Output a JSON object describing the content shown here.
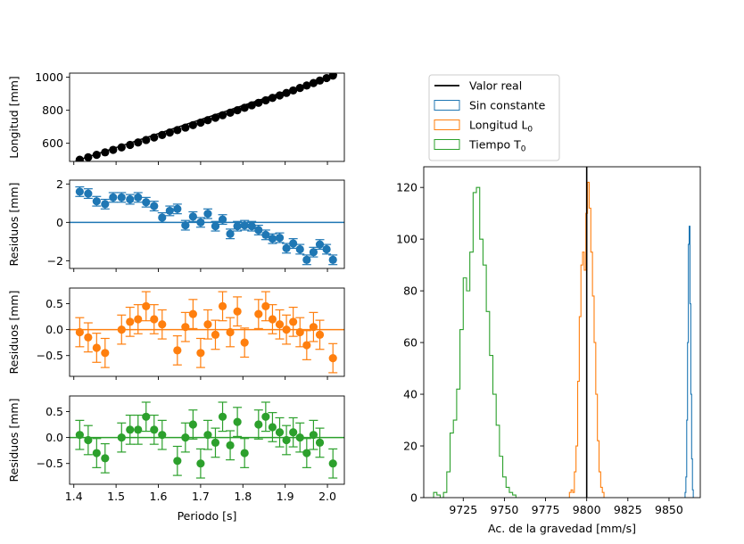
{
  "colors": {
    "blue": "#1f77b4",
    "orange": "#ff7f0e",
    "green": "#2ca02c",
    "black": "#000000"
  },
  "chart_data": [
    {
      "type": "scatter",
      "panel": "length",
      "color": "black",
      "ylabel": "Longitud [mm]",
      "xlim": [
        1.39,
        2.04
      ],
      "ylim": [
        490,
        1025
      ],
      "yticks": [
        600,
        800,
        1000
      ],
      "ytick_labels": [
        "600",
        "800",
        "1000"
      ],
      "has_fit_line": true,
      "x": [
        1.414,
        1.434,
        1.454,
        1.474,
        1.493,
        1.513,
        1.533,
        1.552,
        1.571,
        1.59,
        1.609,
        1.627,
        1.645,
        1.664,
        1.682,
        1.7,
        1.717,
        1.735,
        1.752,
        1.77,
        1.787,
        1.804,
        1.821,
        1.837,
        1.854,
        1.87,
        1.887,
        1.903,
        1.919,
        1.935,
        1.951,
        1.967,
        1.982,
        1.998,
        2.013
      ],
      "y": [
        500,
        515,
        530,
        545,
        560,
        575,
        590,
        605,
        620,
        635,
        650,
        665,
        680,
        695,
        710,
        725,
        740,
        755,
        770,
        785,
        800,
        815,
        830,
        845,
        860,
        875,
        890,
        905,
        920,
        935,
        950,
        965,
        980,
        995,
        1010
      ]
    },
    {
      "type": "scatter",
      "panel": "residuals_sin_constante",
      "color": "blue",
      "ylabel": "Residuos [mm]",
      "xlim": [
        1.39,
        2.04
      ],
      "ylim": [
        -2.4,
        2.2
      ],
      "yticks": [
        -2,
        0,
        2
      ],
      "ytick_labels": [
        "−2",
        "0",
        "2"
      ],
      "error": 0.25,
      "x": [
        1.414,
        1.434,
        1.454,
        1.474,
        1.493,
        1.513,
        1.533,
        1.552,
        1.571,
        1.59,
        1.609,
        1.627,
        1.645,
        1.664,
        1.682,
        1.7,
        1.717,
        1.735,
        1.752,
        1.77,
        1.787,
        1.804,
        1.821,
        1.837,
        1.854,
        1.87,
        1.887,
        1.903,
        1.919,
        1.935,
        1.951,
        1.967,
        1.982,
        1.998,
        2.013
      ],
      "y": [
        1.6,
        1.5,
        1.1,
        0.95,
        1.3,
        1.3,
        1.2,
        1.3,
        1.05,
        0.85,
        0.25,
        0.6,
        0.7,
        -0.15,
        0.3,
        0.0,
        0.45,
        -0.2,
        0.15,
        -0.6,
        -0.2,
        -0.15,
        -0.2,
        -0.4,
        -0.65,
        -0.85,
        -0.8,
        -1.35,
        -1.1,
        -1.4,
        -1.95,
        -1.55,
        -1.15,
        -1.4,
        -1.95
      ]
    },
    {
      "type": "scatter",
      "panel": "residuals_longitud",
      "color": "orange",
      "ylabel": "Residuos [mm]",
      "xlim": [
        1.39,
        2.04
      ],
      "ylim": [
        -0.9,
        0.8
      ],
      "yticks": [
        -0.5,
        0.0,
        0.5
      ],
      "ytick_labels": [
        "−0.5",
        "0.0",
        "0.5"
      ],
      "error": 0.28,
      "x": [
        1.414,
        1.434,
        1.454,
        1.474,
        1.513,
        1.533,
        1.552,
        1.571,
        1.59,
        1.609,
        1.645,
        1.664,
        1.682,
        1.7,
        1.717,
        1.735,
        1.752,
        1.77,
        1.787,
        1.804,
        1.837,
        1.854,
        1.87,
        1.887,
        1.903,
        1.919,
        1.935,
        1.951,
        1.967,
        1.982,
        2.013
      ],
      "y": [
        -0.05,
        -0.15,
        -0.35,
        -0.45,
        0.0,
        0.15,
        0.2,
        0.45,
        0.2,
        0.1,
        -0.4,
        0.05,
        0.3,
        -0.45,
        0.1,
        -0.1,
        0.45,
        -0.05,
        0.35,
        -0.25,
        0.3,
        0.45,
        0.2,
        0.1,
        0.0,
        0.15,
        -0.05,
        -0.3,
        0.05,
        -0.1,
        -0.55
      ]
    },
    {
      "type": "scatter",
      "panel": "residuals_tiempo",
      "color": "green",
      "ylabel": "Residuos [mm]",
      "xlim": [
        1.39,
        2.04
      ],
      "ylim": [
        -0.9,
        0.8
      ],
      "yticks": [
        -0.5,
        0.0,
        0.5
      ],
      "ytick_labels": [
        "−0.5",
        "0.0",
        "0.5"
      ],
      "error": 0.28,
      "xticks": [
        1.4,
        1.5,
        1.6,
        1.7,
        1.8,
        1.9,
        2.0
      ],
      "xtick_labels": [
        "1.4",
        "1.5",
        "1.6",
        "1.7",
        "1.8",
        "1.9",
        "2.0"
      ],
      "xlabel": "Periodo [s]",
      "x": [
        1.414,
        1.434,
        1.454,
        1.474,
        1.513,
        1.533,
        1.552,
        1.571,
        1.59,
        1.609,
        1.645,
        1.664,
        1.682,
        1.7,
        1.717,
        1.735,
        1.752,
        1.77,
        1.787,
        1.804,
        1.837,
        1.854,
        1.87,
        1.887,
        1.903,
        1.919,
        1.935,
        1.951,
        1.967,
        1.982,
        2.013
      ],
      "y": [
        0.05,
        -0.05,
        -0.3,
        -0.4,
        0.0,
        0.15,
        0.15,
        0.4,
        0.15,
        0.05,
        -0.45,
        0.0,
        0.25,
        -0.5,
        0.05,
        -0.1,
        0.4,
        -0.15,
        0.3,
        -0.3,
        0.25,
        0.4,
        0.2,
        0.1,
        -0.05,
        0.1,
        0.0,
        -0.3,
        0.05,
        -0.1,
        -0.5
      ]
    },
    {
      "type": "histogram",
      "panel": "gravity_histogram",
      "xlabel": "Ac. de la gravedad [mm/s]",
      "xlim": [
        9701,
        9869
      ],
      "ylim": [
        0,
        128
      ],
      "xticks": [
        9725,
        9750,
        9775,
        9800,
        9825,
        9850
      ],
      "xtick_labels": [
        "9725",
        "9750",
        "9775",
        "9800",
        "9825",
        "9850"
      ],
      "yticks": [
        0,
        20,
        40,
        60,
        80,
        100,
        120
      ],
      "ytick_labels": [
        "0",
        "20",
        "40",
        "60",
        "80",
        "100",
        "120"
      ],
      "vline": {
        "x": 9800,
        "label": "Valor real"
      },
      "series": [
        {
          "name": "Sin constante",
          "color": "blue",
          "x": [
            9860.0,
            9860.5,
            9861.0,
            9861.5,
            9862.0,
            9862.5,
            9863.0,
            9863.5,
            9864.0,
            9864.5
          ],
          "counts": [
            2,
            8,
            30,
            60,
            98,
            105,
            75,
            40,
            15,
            3
          ]
        },
        {
          "name": "Longitud L_0",
          "legend_label": "Longitud L",
          "legend_sub": "0",
          "color": "orange",
          "x": [
            9790,
            9791,
            9792,
            9793,
            9794,
            9795,
            9796,
            9797,
            9798,
            9799,
            9800,
            9801,
            9802,
            9803,
            9804,
            9805,
            9806,
            9807,
            9808,
            9809,
            9810
          ],
          "counts": [
            2,
            3,
            2,
            10,
            20,
            45,
            70,
            90,
            95,
            88,
            110,
            122,
            112,
            95,
            78,
            60,
            40,
            22,
            10,
            4,
            2
          ]
        },
        {
          "name": "Tiempo T_0",
          "legend_label": "Tiempo T",
          "legend_sub": "0",
          "color": "green",
          "x": [
            9708,
            9710,
            9712,
            9714,
            9716,
            9718,
            9720,
            9722,
            9724,
            9726,
            9728,
            9730,
            9732,
            9734,
            9736,
            9738,
            9740,
            9742,
            9744,
            9746,
            9748,
            9750,
            9752,
            9754,
            9756
          ],
          "counts": [
            2,
            1,
            0,
            2,
            10,
            25,
            30,
            42,
            65,
            85,
            80,
            95,
            118,
            120,
            100,
            90,
            72,
            55,
            40,
            28,
            16,
            8,
            4,
            2,
            1
          ]
        }
      ]
    }
  ]
}
